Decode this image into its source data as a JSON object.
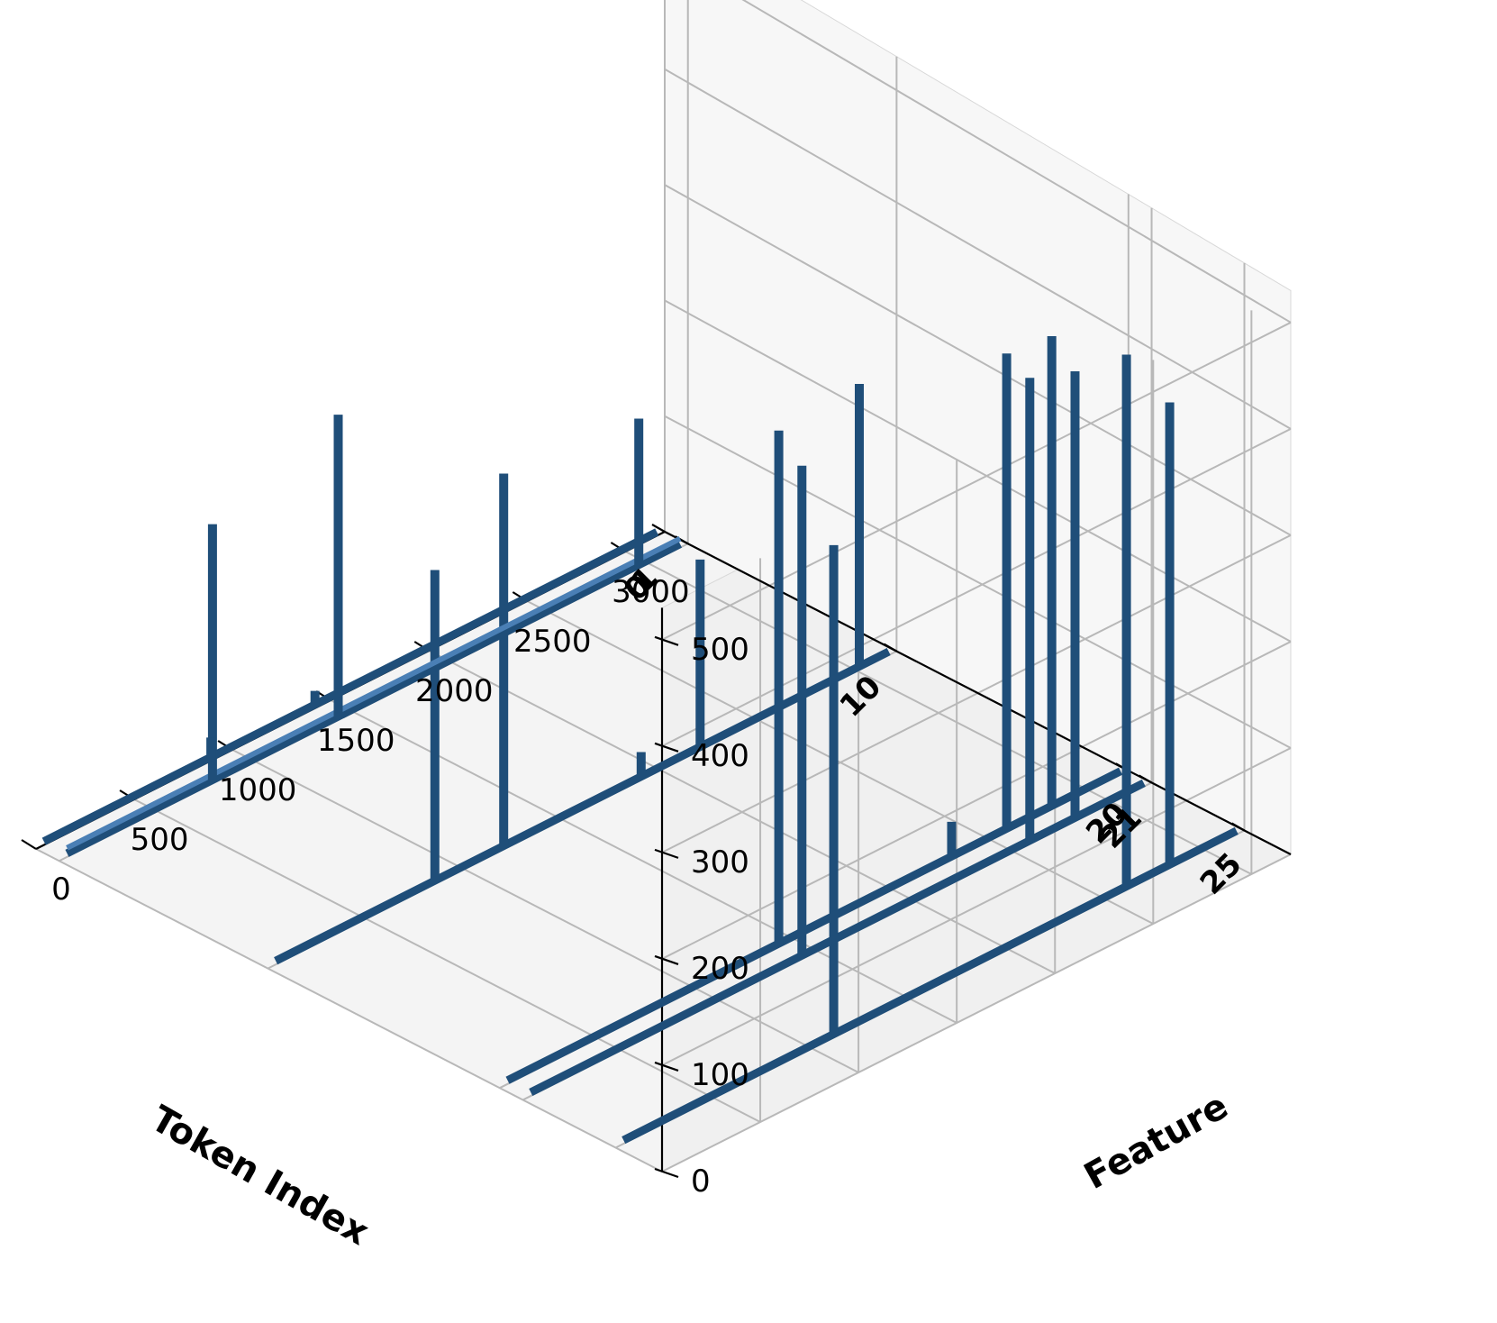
{
  "chart_data": {
    "type": "bar3d",
    "xlabel": "Token Index",
    "ylabel": "Feature",
    "zlabel": "",
    "title": "",
    "token_ticks": [
      "25",
      "21",
      "20",
      "10",
      "1",
      "0"
    ],
    "feature_ticks": [
      "0",
      "500",
      "1000",
      "1500",
      "2000",
      "2500",
      "3000"
    ],
    "z_ticks": [
      "0",
      "100",
      "200",
      "300",
      "400",
      "500"
    ],
    "zlim": [
      0,
      530
    ],
    "feature_range": [
      0,
      3200
    ],
    "rows": [
      {
        "token": 25,
        "peaks": [
          {
            "feature": 1110,
            "value": 460
          },
          {
            "feature": 2600,
            "value": 500
          },
          {
            "feature": 2820,
            "value": 435
          }
        ]
      },
      {
        "token": 21,
        "peaks": [
          {
            "feature": 1420,
            "value": 455
          },
          {
            "feature": 2580,
            "value": 430
          },
          {
            "feature": 2810,
            "value": 415
          }
        ]
      },
      {
        "token": 20,
        "peaks": [
          {
            "feature": 1420,
            "value": 475
          },
          {
            "feature": 2580,
            "value": 440
          },
          {
            "feature": 2810,
            "value": 435
          },
          {
            "feature": 2300,
            "value": 35
          }
        ]
      },
      {
        "token": 10,
        "peaks": [
          {
            "feature": 850,
            "value": 280
          },
          {
            "feature": 1200,
            "value": 335
          },
          {
            "feature": 2200,
            "value": 170
          },
          {
            "feature": 3010,
            "value": 255
          },
          {
            "feature": 1900,
            "value": 25
          }
        ]
      },
      {
        "token": 1,
        "peaks": [
          {
            "feature": 780,
            "value": 225
          },
          {
            "feature": 1420,
            "value": 265
          },
          {
            "feature": 2950,
            "value": 130
          }
        ]
      },
      {
        "token": 0,
        "peaks": [
          {
            "feature": 890,
            "value": 20
          },
          {
            "feature": 1420,
            "value": 15
          }
        ]
      }
    ],
    "bar_color": "#1f4e79",
    "highlight_color": "#4a7fb5",
    "pane_color": "#f2f2f2",
    "grid": true
  }
}
